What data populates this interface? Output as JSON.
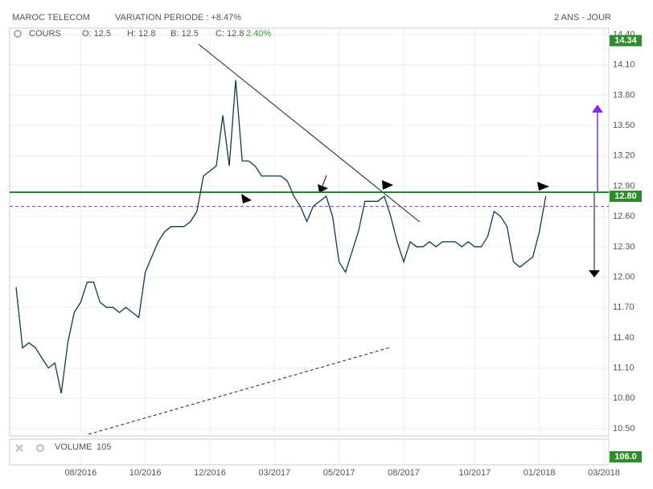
{
  "chart_data": {
    "type": "line",
    "header": {
      "name": "MAROC TELECOM",
      "variation": "VARIATION PERIODE : +8.47%",
      "period": "2 ANS - JOUR"
    },
    "legend": {
      "label": "COURS",
      "open": "O: 12.5",
      "high": "H: 12.8",
      "low": "B: 12.5",
      "close": "C: 12.8",
      "change": "2.40%"
    },
    "volume": {
      "label": "VOLUME",
      "last": "105",
      "box": "106.0"
    },
    "categories": [
      null,
      null,
      null,
      null,
      null,
      null,
      null,
      null,
      null,
      null,
      "08/2016",
      null,
      null,
      null,
      null,
      null,
      null,
      null,
      null,
      null,
      "10/2016",
      null,
      null,
      null,
      null,
      null,
      null,
      null,
      null,
      null,
      "12/2016",
      null,
      null,
      null,
      null,
      null,
      null,
      null,
      null,
      null,
      "03/2017",
      null,
      null,
      null,
      null,
      null,
      null,
      null,
      null,
      null,
      "05/2017",
      null,
      null,
      null,
      null,
      null,
      null,
      null,
      null,
      null,
      "08/2017",
      null,
      null,
      null,
      null,
      null,
      null,
      null,
      null,
      null,
      null,
      "10/2017",
      null,
      null,
      null,
      null,
      null,
      null,
      null,
      null,
      null,
      "01/2018",
      null,
      null,
      null,
      null,
      null,
      null,
      null,
      null,
      null,
      "03/2018"
    ],
    "series": [
      {
        "name": "COURS",
        "color": "#0d3b4c",
        "values": [
          11.9,
          11.3,
          11.35,
          11.3,
          11.2,
          11.1,
          11.15,
          10.85,
          11.35,
          11.65,
          11.75,
          11.95,
          11.95,
          11.75,
          11.7,
          11.7,
          11.65,
          11.7,
          11.65,
          11.6,
          12.05,
          12.2,
          12.35,
          12.45,
          12.5,
          12.5,
          12.5,
          12.55,
          12.65,
          13.0,
          13.05,
          13.1,
          13.6,
          13.1,
          13.95,
          13.15,
          13.15,
          13.1,
          13.0,
          13.0,
          13.0,
          13.0,
          12.95,
          12.8,
          12.7,
          12.55,
          12.7,
          12.75,
          12.8,
          12.6,
          12.15,
          12.05,
          12.25,
          12.45,
          12.75,
          12.75,
          12.75,
          12.8,
          12.6,
          12.35,
          12.15,
          12.35,
          12.3,
          12.3,
          12.35,
          12.3,
          12.35,
          12.35,
          12.35,
          12.3,
          12.35,
          12.3,
          12.3,
          12.4,
          12.65,
          12.6,
          12.5,
          12.15,
          12.1,
          12.15,
          12.2,
          12.45,
          12.8,
          null,
          null,
          null,
          null,
          null,
          null,
          null,
          null,
          null
        ]
      }
    ],
    "ylim": [
      10.5,
      14.4
    ],
    "yticks": [
      {
        "value": 10.5,
        "label": "10.50"
      },
      {
        "value": 10.8,
        "label": "10.80"
      },
      {
        "value": 11.1,
        "label": "11.10"
      },
      {
        "value": 11.4,
        "label": "11.40"
      },
      {
        "value": 11.7,
        "label": "11.70"
      },
      {
        "value": 12.0,
        "label": "12.00"
      },
      {
        "value": 12.3,
        "label": "12.30"
      },
      {
        "value": 12.6,
        "label": "12.60"
      },
      {
        "value": 12.9,
        "label": "12.90"
      },
      {
        "value": 13.2,
        "label": "13.20"
      },
      {
        "value": 13.5,
        "label": "13.50"
      },
      {
        "value": 13.8,
        "label": "13.80"
      },
      {
        "value": 14.1,
        "label": "14.10"
      },
      {
        "value": 14.4,
        "label": "14.40"
      }
    ],
    "high_label": 14.34,
    "last_label": {
      "value": 12.8,
      "label": "12.80"
    },
    "resistance_line": {
      "value": 12.84,
      "color": "#2e7d32"
    },
    "dashed_line": {
      "value": 12.7,
      "color": "#7b3fa0"
    },
    "grid": true
  }
}
